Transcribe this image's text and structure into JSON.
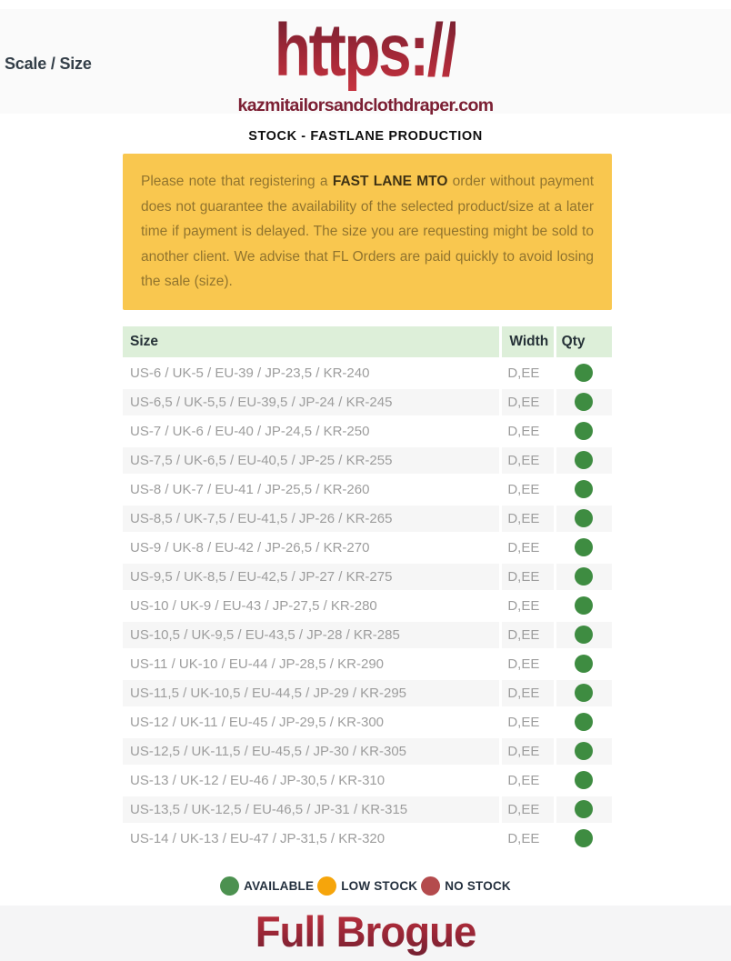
{
  "header": {
    "scale_size_label": "Scale / Size",
    "logo_text": "https://",
    "logo_domain": "kazmitailorsandclothdraper.com",
    "subtitle": "STOCK - FASTLANE PRODUCTION"
  },
  "notice": {
    "text_before": "Please note that registering a ",
    "bold_text": "FAST LANE MTO",
    "text_after": " order without payment does not guarantee the availability of the selected product/size at a later time if payment is delayed. The size you are requesting might be sold to another client. We advise that FL Orders are paid quickly to avoid losing the sale (size).",
    "bg_color": "#F9C74F"
  },
  "table": {
    "columns": [
      "Size",
      "Width",
      "Qty"
    ],
    "status_colors": {
      "available": "#3E8C41",
      "low_stock": "#F6A50B",
      "no_stock": "#B44B4D"
    },
    "rows": [
      {
        "size": "US-6 / UK-5 / EU-39 / JP-23,5 / KR-240",
        "width": "D,EE",
        "qty_status": "available"
      },
      {
        "size": "US-6,5 / UK-5,5 / EU-39,5 / JP-24 / KR-245",
        "width": "D,EE",
        "qty_status": "available"
      },
      {
        "size": "US-7 / UK-6 / EU-40 / JP-24,5 / KR-250",
        "width": "D,EE",
        "qty_status": "available"
      },
      {
        "size": "US-7,5 / UK-6,5 / EU-40,5 / JP-25 / KR-255",
        "width": "D,EE",
        "qty_status": "available"
      },
      {
        "size": "US-8 / UK-7 / EU-41 / JP-25,5 / KR-260",
        "width": "D,EE",
        "qty_status": "available"
      },
      {
        "size": "US-8,5 / UK-7,5 / EU-41,5 / JP-26 / KR-265",
        "width": "D,EE",
        "qty_status": "available"
      },
      {
        "size": "US-9 / UK-8 / EU-42 / JP-26,5 / KR-270",
        "width": "D,EE",
        "qty_status": "available"
      },
      {
        "size": "US-9,5 / UK-8,5 / EU-42,5 / JP-27 / KR-275",
        "width": "D,EE",
        "qty_status": "available"
      },
      {
        "size": "US-10 / UK-9 / EU-43 / JP-27,5 / KR-280",
        "width": "D,EE",
        "qty_status": "available"
      },
      {
        "size": "US-10,5 / UK-9,5 / EU-43,5 / JP-28 / KR-285",
        "width": "D,EE",
        "qty_status": "available"
      },
      {
        "size": "US-11 / UK-10 / EU-44 / JP-28,5 / KR-290",
        "width": "D,EE",
        "qty_status": "available"
      },
      {
        "size": "US-11,5 / UK-10,5 / EU-44,5 / JP-29 / KR-295",
        "width": "D,EE",
        "qty_status": "available"
      },
      {
        "size": "US-12 / UK-11 / EU-45 / JP-29,5 / KR-300",
        "width": "D,EE",
        "qty_status": "available"
      },
      {
        "size": "US-12,5 / UK-11,5 / EU-45,5 / JP-30 / KR-305",
        "width": "D,EE",
        "qty_status": "available"
      },
      {
        "size": "US-13 / UK-12 / EU-46 / JP-30,5 / KR-310",
        "width": "D,EE",
        "qty_status": "available"
      },
      {
        "size": "US-13,5 / UK-12,5 / EU-46,5 / JP-31 / KR-315",
        "width": "D,EE",
        "qty_status": "available"
      },
      {
        "size": "US-14 / UK-13 / EU-47 / JP-31,5 / KR-320",
        "width": "D,EE",
        "qty_status": "available"
      }
    ]
  },
  "legend": {
    "items": [
      {
        "label": "AVAILABLE",
        "color": "#4C9150"
      },
      {
        "label": "LOW STOCK",
        "color": "#F6A50B"
      },
      {
        "label": "NO STOCK",
        "color": "#B44B4D"
      }
    ]
  },
  "footer": {
    "product_name": "Full Brogue"
  },
  "colors": {
    "header_band_bg": "#FAFAFA",
    "footer_band_bg": "#F5F5F6",
    "brand_gradient_top": "#6F1F30",
    "brand_gradient_bottom": "#C8333F",
    "table_header_bg": "#DDEFD9",
    "row_alt_bg": "#F6F6F6",
    "row_text": "#9D9D9D"
  }
}
